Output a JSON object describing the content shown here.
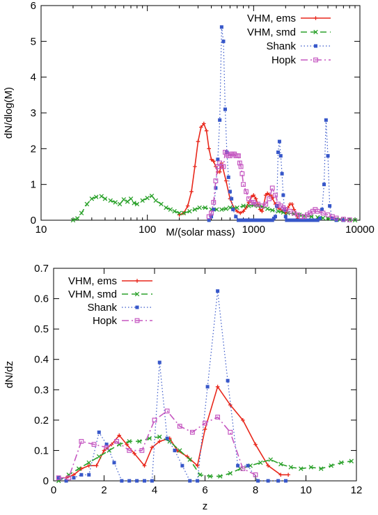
{
  "chart_data": [
    {
      "type": "line",
      "xlabel": "M/(solar mass)",
      "ylabel": "dN/dlog(M)",
      "xscale": "log",
      "xlim": [
        10,
        10000
      ],
      "ylim": [
        0,
        6
      ],
      "xticks": [
        10,
        100,
        1000,
        10000
      ],
      "xtick_labels": [
        "10",
        "100",
        "1000",
        "10000"
      ],
      "yticks": [
        0,
        1,
        2,
        3,
        4,
        5,
        6
      ],
      "ytick_labels": [
        "0",
        "1",
        "2",
        "3",
        "4",
        "5",
        "6"
      ],
      "legend_position": "top-right",
      "series": [
        {
          "name": "VHM, ems",
          "color": "#e8271b",
          "style": "solid",
          "marker": "plus",
          "x": [
            200,
            220,
            240,
            260,
            280,
            300,
            320,
            340,
            360,
            380,
            400,
            420,
            440,
            460,
            480,
            500,
            550,
            600,
            650,
            700,
            750,
            800,
            850,
            900,
            950,
            1000,
            1050,
            1100,
            1150,
            1200,
            1250,
            1300,
            1350,
            1400,
            1450,
            1500,
            1600,
            1700,
            1800,
            1900,
            2000,
            2100,
            2200,
            2300,
            2400,
            2500,
            2600
          ],
          "y": [
            0.15,
            0.2,
            0.4,
            0.8,
            1.5,
            2.2,
            2.6,
            2.7,
            2.5,
            2.0,
            1.7,
            1.65,
            1.5,
            1.35,
            1.35,
            1.6,
            1.1,
            0.6,
            0.35,
            0.25,
            0.2,
            0.25,
            0.35,
            0.5,
            0.65,
            0.7,
            0.6,
            0.45,
            0.3,
            0.25,
            0.45,
            0.7,
            0.75,
            0.72,
            0.7,
            0.62,
            0.45,
            0.35,
            0.3,
            0.25,
            0.2,
            0.35,
            0.45,
            0.45,
            0.3,
            0.2,
            0.05
          ]
        },
        {
          "name": "VHM, smd",
          "color": "#2aa12a",
          "style": "dashed",
          "marker": "x",
          "x": [
            20,
            22,
            24,
            27,
            30,
            33,
            37,
            40,
            45,
            50,
            55,
            60,
            65,
            70,
            75,
            80,
            90,
            100,
            110,
            120,
            135,
            150,
            165,
            180,
            200,
            220,
            250,
            280,
            310,
            350,
            400,
            450,
            500,
            550,
            600,
            700,
            800,
            900,
            1000,
            1100,
            1200,
            1350,
            1500,
            1700,
            1900,
            2100,
            2400,
            2700,
            3000,
            3500,
            4000,
            4500,
            5000,
            5500,
            6000,
            6500,
            7000,
            8000,
            9000
          ],
          "y": [
            0.0,
            0.05,
            0.2,
            0.45,
            0.6,
            0.65,
            0.67,
            0.6,
            0.55,
            0.5,
            0.45,
            0.58,
            0.52,
            0.6,
            0.48,
            0.45,
            0.55,
            0.62,
            0.68,
            0.55,
            0.45,
            0.35,
            0.3,
            0.25,
            0.2,
            0.2,
            0.25,
            0.3,
            0.35,
            0.35,
            0.3,
            0.3,
            0.3,
            0.32,
            0.35,
            0.35,
            0.4,
            0.4,
            0.42,
            0.4,
            0.38,
            0.32,
            0.28,
            0.25,
            0.22,
            0.2,
            0.18,
            0.15,
            0.12,
            0.1,
            0.08,
            0.06,
            0.05,
            0.04,
            0.03,
            0.02,
            0.01,
            0.01,
            0.0
          ]
        },
        {
          "name": "Shank",
          "color": "#3757c9",
          "style": "dotted",
          "marker": "square-filled",
          "x": [
            380,
            400,
            420,
            440,
            460,
            480,
            500,
            520,
            540,
            560,
            580,
            600,
            620,
            640,
            680,
            720,
            760,
            800,
            850,
            900,
            950,
            1000,
            1050,
            1100,
            1150,
            1200,
            1250,
            1300,
            1350,
            1400,
            1450,
            1500,
            1550,
            1600,
            1650,
            1700,
            1750,
            1800,
            1850,
            1900,
            1950,
            2000,
            2050,
            2100,
            2200,
            2300,
            2400,
            2500,
            2600,
            2700,
            2800,
            3000,
            3200,
            3400,
            3600,
            3800,
            4000,
            4200,
            4400,
            4600,
            4800,
            5000,
            5200,
            5500,
            6000,
            7000
          ],
          "y": [
            0.0,
            0.1,
            0.3,
            0.9,
            1.7,
            2.8,
            5.4,
            5.0,
            3.1,
            1.9,
            1.2,
            0.8,
            0.6,
            0.3,
            0.1,
            0.0,
            0.0,
            0.0,
            0.0,
            0.0,
            0.0,
            0.0,
            0.0,
            0.0,
            0.0,
            0.0,
            0.0,
            0.0,
            0.0,
            0.0,
            0.0,
            0.0,
            0.05,
            0.1,
            0.4,
            1.9,
            2.2,
            1.8,
            1.3,
            0.7,
            0.3,
            0.1,
            0.0,
            0.0,
            0.0,
            0.0,
            0.0,
            0.0,
            0.0,
            0.0,
            0.0,
            0.0,
            0.0,
            0.0,
            0.0,
            0.0,
            0.0,
            0.05,
            0.3,
            1.0,
            2.8,
            1.8,
            0.4,
            0.05,
            0.0,
            0.0
          ]
        },
        {
          "name": "Hopk",
          "color": "#c557c1",
          "style": "dashdot",
          "marker": "square-open",
          "x": [
            380,
            400,
            420,
            440,
            460,
            480,
            500,
            520,
            540,
            560,
            580,
            600,
            620,
            640,
            660,
            680,
            700,
            720,
            740,
            760,
            780,
            800,
            850,
            900,
            950,
            1000,
            1050,
            1100,
            1200,
            1300,
            1400,
            1500,
            1600,
            1700,
            1800,
            1900,
            2000,
            2200,
            2400,
            2600,
            2800,
            3000,
            3200,
            3400,
            3600,
            3800,
            4000,
            4500,
            5000,
            5500,
            6000,
            7000,
            8000
          ],
          "y": [
            0.1,
            0.2,
            0.5,
            1.1,
            1.5,
            1.6,
            1.5,
            1.5,
            1.9,
            1.85,
            1.8,
            1.8,
            1.85,
            1.85,
            1.85,
            1.8,
            1.8,
            1.8,
            1.6,
            1.5,
            1.3,
            1.0,
            0.8,
            0.6,
            0.5,
            0.5,
            0.45,
            0.45,
            0.4,
            0.45,
            0.6,
            0.9,
            0.7,
            0.45,
            0.4,
            0.35,
            0.3,
            0.25,
            0.2,
            0.15,
            0.1,
            0.1,
            0.15,
            0.2,
            0.25,
            0.3,
            0.25,
            0.2,
            0.15,
            0.1,
            0.06,
            0.03,
            0.01
          ]
        }
      ]
    },
    {
      "type": "line",
      "xlabel": "z",
      "ylabel": "dN/dz",
      "xlim": [
        0,
        12
      ],
      "ylim": [
        0,
        0.7
      ],
      "xticks": [
        0,
        2,
        4,
        6,
        8,
        10,
        12
      ],
      "xtick_labels": [
        "0",
        "2",
        "4",
        "6",
        "8",
        "10",
        "12"
      ],
      "yticks": [
        0,
        0.1,
        0.2,
        0.3,
        0.4,
        0.5,
        0.6,
        0.7
      ],
      "ytick_labels": [
        "0",
        "0.1",
        "0.2",
        "0.3",
        "0.4",
        "0.5",
        "0.6",
        "0.7"
      ],
      "legend_position": "top-left",
      "series": [
        {
          "name": "VHM, ems",
          "color": "#e8271b",
          "style": "solid",
          "marker": "plus",
          "x": [
            0.2,
            0.5,
            0.8,
            1.1,
            1.4,
            1.7,
            2.0,
            2.3,
            2.6,
            2.9,
            3.2,
            3.6,
            3.9,
            4.2,
            4.6,
            4.9,
            5.3,
            5.7,
            6.0,
            6.5,
            7.0,
            7.5,
            8.0,
            8.5,
            9.0,
            9.3
          ],
          "y": [
            0.01,
            0.01,
            0.02,
            0.04,
            0.05,
            0.05,
            0.1,
            0.12,
            0.15,
            0.12,
            0.09,
            0.05,
            0.11,
            0.13,
            0.14,
            0.1,
            0.08,
            0.05,
            0.17,
            0.31,
            0.25,
            0.2,
            0.12,
            0.05,
            0.02,
            0.02
          ]
        },
        {
          "name": "VHM, smd",
          "color": "#2aa12a",
          "style": "dashed",
          "marker": "x",
          "x": [
            0.2,
            0.6,
            1.0,
            1.4,
            1.8,
            2.2,
            2.6,
            3.0,
            3.4,
            3.8,
            4.2,
            4.6,
            5.0,
            5.4,
            5.8,
            6.2,
            6.6,
            7.0,
            7.4,
            7.8,
            8.2,
            8.6,
            9.0,
            9.4,
            9.8,
            10.2,
            10.6,
            11.0,
            11.4,
            11.8
          ],
          "y": [
            0.0,
            0.02,
            0.04,
            0.06,
            0.08,
            0.1,
            0.12,
            0.13,
            0.13,
            0.14,
            0.145,
            0.13,
            0.1,
            0.07,
            0.02,
            0.015,
            0.015,
            0.025,
            0.04,
            0.05,
            0.06,
            0.07,
            0.055,
            0.045,
            0.04,
            0.045,
            0.04,
            0.05,
            0.06,
            0.065
          ]
        },
        {
          "name": "Shank",
          "color": "#3757c9",
          "style": "dotted",
          "marker": "square-filled",
          "x": [
            0.2,
            0.5,
            0.8,
            1.1,
            1.4,
            1.8,
            2.1,
            2.4,
            2.7,
            3.0,
            3.3,
            3.6,
            3.9,
            4.2,
            4.5,
            4.8,
            5.1,
            5.4,
            5.7,
            6.1,
            6.5,
            6.9,
            7.3,
            7.7,
            8.1,
            8.5,
            8.9,
            9.2
          ],
          "y": [
            0.01,
            0.0,
            0.01,
            0.02,
            0.02,
            0.16,
            0.12,
            0.06,
            0.0,
            0.0,
            0.0,
            0.0,
            0.0,
            0.39,
            0.14,
            0.1,
            0.05,
            0.0,
            0.0,
            0.31,
            0.625,
            0.33,
            0.05,
            0.05,
            0.0,
            0.0,
            0.0,
            0.0
          ]
        },
        {
          "name": "Hopk",
          "color": "#c557c1",
          "style": "dashdot",
          "marker": "square-open",
          "x": [
            0.2,
            0.6,
            1.1,
            1.6,
            2.1,
            2.5,
            3.0,
            3.5,
            4.0,
            4.5,
            5.0,
            5.5,
            6.0,
            6.5,
            7.0,
            7.5,
            8.0
          ],
          "y": [
            0.01,
            0.01,
            0.13,
            0.12,
            0.11,
            0.13,
            0.1,
            0.1,
            0.2,
            0.23,
            0.18,
            0.16,
            0.19,
            0.21,
            0.16,
            0.04,
            0.02
          ]
        }
      ]
    }
  ]
}
